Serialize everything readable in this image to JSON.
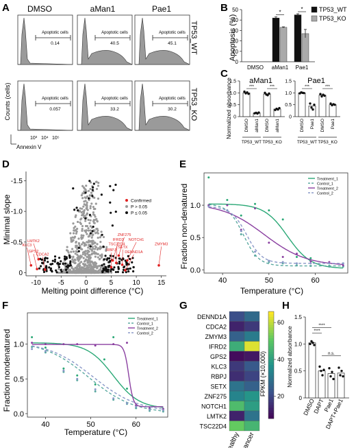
{
  "panel_letters": [
    "A",
    "B",
    "C",
    "D",
    "E",
    "F",
    "G",
    "H"
  ],
  "chart_data": [
    {
      "panel": "A",
      "type": "histogram",
      "col_headers": [
        "DMSO",
        "aMan1",
        "Pae1"
      ],
      "row_labels": [
        "TP53_WT",
        "TP53_KO"
      ],
      "gate_label": "Apoptotic cells",
      "percentages": [
        [
          "0.14",
          "40.5",
          "45.1"
        ],
        [
          "0.057",
          "33.2",
          "30.2"
        ]
      ],
      "ylabel": "Counts (cells)",
      "xlabel": "Annexin V",
      "xticks": [
        "10³",
        "10⁴",
        "10⁵"
      ]
    },
    {
      "panel": "B",
      "type": "bar",
      "categories": [
        "DMSO",
        "aMan1",
        "Pae1"
      ],
      "series": [
        {
          "name": "TP53_WT",
          "values": [
            0,
            42,
            45
          ],
          "errors": [
            0,
            1,
            1
          ],
          "color": "#111111"
        },
        {
          "name": "TP53_KO",
          "values": [
            0,
            33,
            27
          ],
          "errors": [
            0,
            0.5,
            4
          ],
          "color": "#aaaaaa"
        }
      ],
      "ylabel": "Apoptosis (%)",
      "ylim": [
        0,
        50
      ],
      "yticks": [
        "0",
        "10",
        "20",
        "30",
        "40",
        "50"
      ],
      "sig": [
        "*",
        "*"
      ],
      "legend_position": "top-right"
    },
    {
      "panel": "C",
      "type": "bar",
      "subplots": [
        {
          "title": "aMan1",
          "categories": [
            "DMSO",
            "aMan1",
            "DMSO",
            "aMan1"
          ],
          "values": [
            1.0,
            0.15,
            0.95,
            0.32
          ],
          "points": [
            [
              1.05,
              0.98,
              1.02,
              0.96
            ],
            [
              0.14,
              0.16,
              0.13,
              0.17
            ],
            [
              1.0,
              0.93,
              0.9,
              0.97
            ],
            [
              0.28,
              0.33,
              0.3,
              0.36
            ]
          ],
          "groups": [
            "TP53_WT",
            "TP53_KO"
          ],
          "sig": [
            "***",
            "***"
          ]
        },
        {
          "title": "Pae1",
          "categories": [
            "DMSO",
            "Pae1",
            "DMSO",
            "Pae1"
          ],
          "values": [
            1.0,
            0.45,
            0.9,
            0.5
          ],
          "points": [
            [
              0.98,
              1.02,
              1.0,
              0.99
            ],
            [
              0.55,
              0.38,
              0.3,
              0.5
            ],
            [
              0.95,
              0.85,
              0.92,
              0.88
            ],
            [
              0.55,
              0.48,
              0.52,
              0.5
            ]
          ],
          "groups": [
            "TP53_WT",
            "TP53_KO"
          ],
          "sig": [
            "***",
            "***"
          ]
        }
      ],
      "ylabel": "Normalized absorbance",
      "ylim": [
        0,
        1.5
      ],
      "yticks": [
        "0",
        "0.5",
        "1.0",
        "1.5"
      ]
    },
    {
      "panel": "D",
      "type": "scatter",
      "xlabel": "Melting point difference (°C)",
      "ylabel": "Minimal slope",
      "xlim": [
        -12,
        16
      ],
      "ylim": [
        0.05,
        -1.65
      ],
      "xticks": [
        "-10",
        "-5",
        "0",
        "5",
        "10",
        "15"
      ],
      "yticks": [
        "-1.5",
        "-1.0",
        "-0.5",
        "0"
      ],
      "legend": [
        "Confirmed",
        "P > 0.05",
        "P ≤ 0.05"
      ],
      "legend_colors": [
        "#e02020",
        "#999999",
        "#111111"
      ],
      "legend_position": "center-right",
      "confirmed": [
        {
          "label": "LMTK2",
          "x": -9.5,
          "y": -0.22
        },
        {
          "label": "KLC3",
          "x": -11.0,
          "y": -0.12
        },
        {
          "label": "GPS2",
          "x": -9.8,
          "y": -0.06
        },
        {
          "label": "CDCA2",
          "x": -8.2,
          "y": -0.05
        },
        {
          "label": "ZNF275",
          "x": 6.5,
          "y": -0.28
        },
        {
          "label": "IFRD2",
          "x": 5.3,
          "y": -0.2
        },
        {
          "label": "NOTCH1",
          "x": 8.2,
          "y": -0.2
        },
        {
          "label": "TSC22D4",
          "x": 6.0,
          "y": -0.16
        },
        {
          "label": "SETX",
          "x": 7.2,
          "y": -0.13
        },
        {
          "label": "RBPJ",
          "x": 5.0,
          "y": -0.09
        },
        {
          "label": "DENND1A",
          "x": 7.8,
          "y": -0.04
        },
        {
          "label": "ZMYM3",
          "x": 14.5,
          "y": -0.12
        }
      ]
    },
    {
      "panel": "E",
      "type": "line",
      "xlabel": "Temperature (°C)",
      "ylabel": "Fraction non-denatured",
      "xlim": [
        36,
        67
      ],
      "ylim": [
        -0.05,
        1.5
      ],
      "xticks": [
        "40",
        "50",
        "60"
      ],
      "yticks": [
        "0.0",
        "0.5",
        "1.0"
      ],
      "legend_position": "top-right",
      "series": [
        {
          "name": "Treatment_1",
          "color": "#2aa876",
          "dash": "",
          "tm": 54,
          "k": 0.4,
          "top": 1.02,
          "bottom": 0.02,
          "points": [
            [
              37,
              1.43
            ],
            [
              41,
              1.08
            ],
            [
              44,
              0.84
            ],
            [
              47,
              1.02
            ],
            [
              50,
              0.92
            ],
            [
              53,
              0.78
            ],
            [
              56,
              0.2
            ],
            [
              59,
              0.18
            ],
            [
              63,
              0.06
            ],
            [
              66,
              0.1
            ]
          ]
        },
        {
          "name": "Control_1",
          "color": "#5aa9a0",
          "dash": "4,3",
          "tm": 44.5,
          "k": 0.6,
          "top": 1.02,
          "bottom": 0.06,
          "points": [
            [
              37,
              1.0
            ],
            [
              41,
              0.92
            ],
            [
              44,
              0.55
            ],
            [
              47,
              0.22
            ],
            [
              50,
              0.12
            ],
            [
              53,
              0.1
            ],
            [
              56,
              0.07
            ],
            [
              59,
              0.06
            ],
            [
              63,
              0.05
            ],
            [
              66,
              0.05
            ]
          ]
        },
        {
          "name": "Treatment_2",
          "color": "#8a3fa0",
          "dash": "",
          "tm": 49,
          "k": 0.22,
          "top": 1.03,
          "bottom": 0.06,
          "points": [
            [
              37,
              1.0
            ],
            [
              41,
              1.0
            ],
            [
              44,
              0.62
            ],
            [
              47,
              0.95
            ],
            [
              50,
              0.42
            ],
            [
              53,
              0.2
            ],
            [
              56,
              0.25
            ],
            [
              59,
              0.13
            ],
            [
              63,
              0.12
            ],
            [
              66,
              0.07
            ]
          ]
        },
        {
          "name": "Control_2",
          "color": "#8a98c8",
          "dash": "4,3",
          "tm": 45.2,
          "k": 0.6,
          "top": 0.98,
          "bottom": 0.1,
          "points": [
            [
              37,
              0.98
            ],
            [
              41,
              0.92
            ],
            [
              44,
              0.6
            ],
            [
              47,
              0.28
            ],
            [
              50,
              0.14
            ],
            [
              53,
              0.12
            ],
            [
              56,
              0.1
            ],
            [
              59,
              0.1
            ],
            [
              63,
              0.1
            ],
            [
              66,
              0.1
            ]
          ]
        }
      ]
    },
    {
      "panel": "F",
      "type": "line",
      "xlabel": "Temperature (°C)",
      "ylabel": "Fraction nondenatured",
      "xlim": [
        36,
        67
      ],
      "ylim": [
        -0.05,
        1.45
      ],
      "xticks": [
        "40",
        "50",
        "60"
      ],
      "yticks": [
        "0.0",
        "0.5",
        "1.0"
      ],
      "legend_position": "top-right",
      "series": [
        {
          "name": "Treatment_1",
          "color": "#2aa876",
          "dash": "",
          "tm": 55,
          "k": 0.35,
          "top": 1.02,
          "bottom": 0.07,
          "points": [
            [
              37,
              1.1
            ],
            [
              40,
              0.95
            ],
            [
              44,
              0.65
            ],
            [
              47,
              0.55
            ],
            [
              51,
              0.42
            ],
            [
              53,
              0.78
            ],
            [
              55,
              1.1
            ],
            [
              58,
              0.36
            ],
            [
              60,
              0.08
            ],
            [
              63,
              0.07
            ],
            [
              66,
              0.05
            ]
          ]
        },
        {
          "name": "Control_1",
          "color": "#5aa9a0",
          "dash": "4,3",
          "tm": 49.5,
          "k": 0.2,
          "top": 1.05,
          "bottom": 0.0,
          "points": [
            [
              37,
              0.96
            ],
            [
              40,
              0.88
            ],
            [
              44,
              0.6
            ],
            [
              47,
              0.48
            ],
            [
              51,
              0.32
            ],
            [
              55,
              0.2
            ],
            [
              58,
              0.14
            ],
            [
              60,
              0.08
            ],
            [
              63,
              0.04
            ],
            [
              66,
              0.03
            ]
          ]
        },
        {
          "name": "Treatment_2",
          "color": "#8a3fa0",
          "dash": "",
          "tm": 58.4,
          "k": 2.0,
          "top": 0.995,
          "bottom": 0.1,
          "points": [
            [
              37,
              1.02
            ],
            [
              40,
              1.0
            ],
            [
              44,
              1.0
            ],
            [
              47,
              1.0
            ],
            [
              51,
              0.98
            ],
            [
              55,
              1.0
            ],
            [
              58,
              1.02
            ],
            [
              60,
              0.12
            ],
            [
              63,
              0.08
            ],
            [
              66,
              0.07
            ]
          ]
        },
        {
          "name": "Control_2",
          "color": "#8a98c8",
          "dash": "4,3",
          "tm": 50.5,
          "k": 0.2,
          "top": 1.04,
          "bottom": 0.02,
          "points": [
            [
              37,
              0.93
            ],
            [
              40,
              0.9
            ],
            [
              44,
              0.62
            ],
            [
              47,
              0.5
            ],
            [
              51,
              0.35
            ],
            [
              55,
              0.22
            ],
            [
              58,
              0.15
            ],
            [
              60,
              0.1
            ],
            [
              63,
              0.06
            ],
            [
              66,
              0.05
            ]
          ]
        }
      ]
    },
    {
      "panel": "G",
      "type": "heatmap",
      "rows": [
        "DENND1A",
        "CDCA2",
        "ZMYM3",
        "IFRD2",
        "GPS2",
        "KLC3",
        "RBPJ",
        "SETX",
        "ZNF275",
        "NOTCH1",
        "LMTK2",
        "TSC22D4"
      ],
      "cols": [
        "Healthy",
        "Cancer"
      ],
      "values": [
        [
          22,
          28
        ],
        [
          14,
          18
        ],
        [
          26,
          32
        ],
        [
          44,
          63
        ],
        [
          10,
          12
        ],
        [
          18,
          24
        ],
        [
          16,
          20
        ],
        [
          30,
          26
        ],
        [
          34,
          38
        ],
        [
          48,
          40
        ],
        [
          14,
          30
        ],
        [
          52,
          46
        ]
      ],
      "colorbar_label": "FPKM (×10,000)",
      "colorbar_ticks": [
        "20",
        "40",
        "60"
      ],
      "vmin": 8,
      "vmax": 66
    },
    {
      "panel": "H",
      "type": "bar",
      "categories": [
        "DMSO",
        "DAPT",
        "Pae1",
        "DAPT+Pae1"
      ],
      "values": [
        1.02,
        0.5,
        0.45,
        0.46
      ],
      "points": [
        [
          1.0,
          1.05,
          1.02,
          0.98
        ],
        [
          0.58,
          0.5,
          0.42,
          0.52
        ],
        [
          0.55,
          0.4,
          0.48,
          0.35
        ],
        [
          0.56,
          0.42,
          0.5,
          0.4
        ]
      ],
      "ylabel": "Normalized absorbance",
      "ylim": [
        0,
        1.5
      ],
      "yticks": [
        "0",
        "0.5",
        "1.0",
        "1.5"
      ],
      "sig": [
        {
          "text": "****"
        },
        {
          "text": "****"
        },
        {
          "text": "n.s."
        }
      ]
    }
  ]
}
